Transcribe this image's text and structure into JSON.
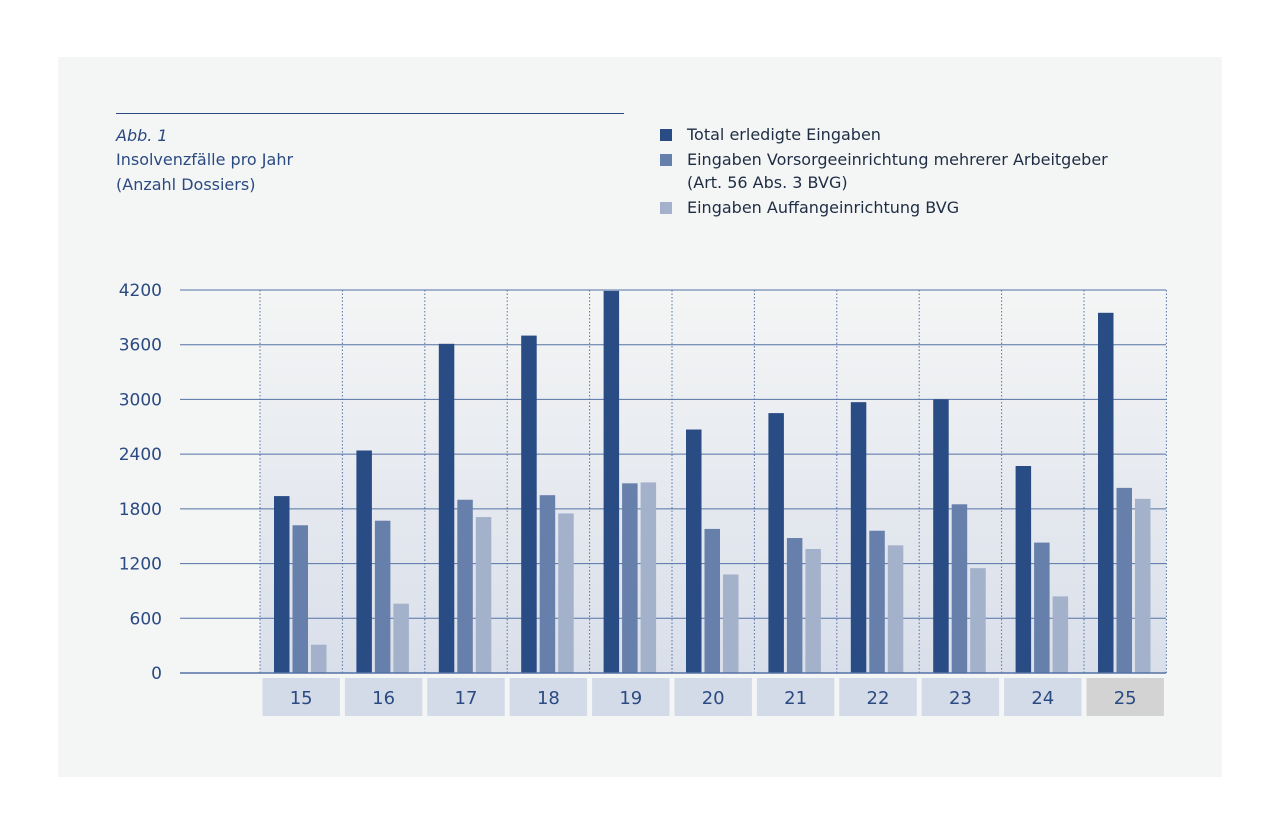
{
  "figure": {
    "number": "Abb. 1",
    "title": "Insolvenzfälle pro Jahr",
    "subtitle": "(Anzahl Dossiers)"
  },
  "legend": [
    {
      "label": "Total erledigte Eingaben",
      "label2": "",
      "color": "#2a4c85"
    },
    {
      "label": "Eingaben Vorsorgeeinrichtung mehrerer Arbeitgeber",
      "label2": "(Art. 56 Abs. 3 BVG)",
      "color": "#677fab"
    },
    {
      "label": "Eingaben Auffangeinrichtung BVG",
      "label2": "",
      "color": "#a3b1cb"
    }
  ],
  "chart_data": {
    "type": "bar",
    "categories": [
      "15",
      "16",
      "17",
      "18",
      "19",
      "20",
      "21",
      "22",
      "23",
      "24",
      "25"
    ],
    "highlight_category": "25",
    "series": [
      {
        "name": "Total erledigte Eingaben",
        "color": "#2a4c85",
        "values": [
          1940,
          2440,
          3610,
          3700,
          4190,
          2670,
          2850,
          2970,
          3000,
          2270,
          3950
        ]
      },
      {
        "name": "Eingaben Vorsorgeeinrichtung mehrerer Arbeitgeber (Art. 56 Abs. 3 BVG)",
        "color": "#677fab",
        "values": [
          1620,
          1670,
          1900,
          1950,
          2080,
          1580,
          1480,
          1560,
          1850,
          1430,
          2030
        ]
      },
      {
        "name": "Eingaben Auffangeinrichtung BVG",
        "color": "#a3b1cb",
        "values": [
          310,
          760,
          1710,
          1750,
          2090,
          1080,
          1360,
          1400,
          1150,
          840,
          1910
        ]
      }
    ],
    "yticks": [
      "0",
      "600",
      "1200",
      "1800",
      "2400",
      "3000",
      "3600",
      "4200"
    ],
    "ylim": [
      0,
      4200
    ],
    "grid": true,
    "legend_position": "top-right",
    "colors": {
      "grid": "#5572a6",
      "category_bg": "#d3dae8",
      "category_bg_highlight": "#d3d3d3",
      "plot_fill_top": "#f4f5f5",
      "plot_fill_bottom": "#d9dfea"
    }
  }
}
